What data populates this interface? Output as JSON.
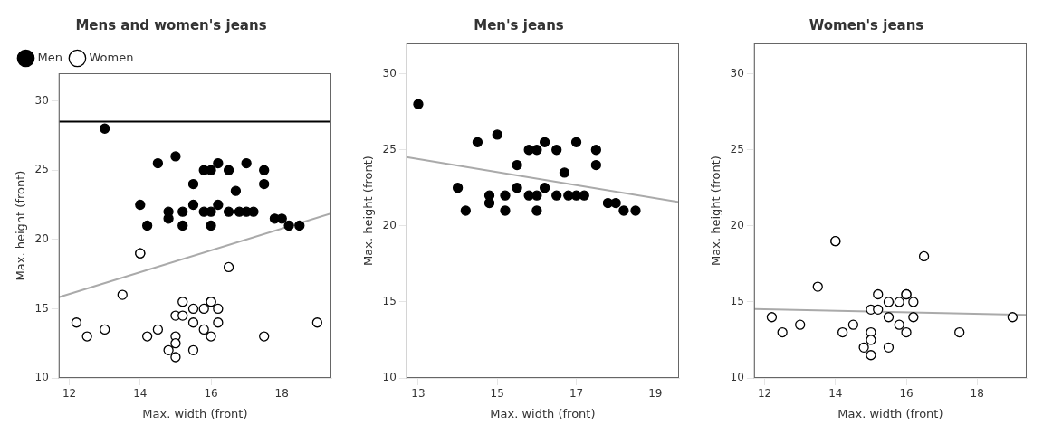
{
  "chart_data": [
    {
      "type": "scatter",
      "title": "Mens and women's jeans",
      "xlabel": "Max. width (front)",
      "ylabel": "Max. height (front)",
      "xlim": [
        11.7,
        19.4
      ],
      "xticks": [
        12,
        14,
        16,
        18
      ],
      "ylim": [
        10,
        32
      ],
      "yticks": [
        10,
        15,
        20,
        25,
        30
      ],
      "grid": false,
      "legend": "upper left",
      "series": [
        {
          "type": "line",
          "color": "#aaaaaa",
          "line_style": "solid",
          "x": [
            11.7,
            19.4
          ],
          "values": [
            15.8233,
            21.8798
          ]
        },
        {
          "name": "Men",
          "type": "scatter",
          "color": "#000000",
          "marker": "circle",
          "x": [
            13.0,
            14.0,
            14.2,
            14.5,
            14.8,
            14.8,
            15.0,
            15.2,
            15.2,
            15.5,
            15.5,
            15.8,
            15.8,
            16.0,
            16.0,
            16.0,
            16.2,
            16.2,
            16.5,
            16.5,
            16.7,
            16.8,
            17.0,
            17.0,
            17.2,
            17.5,
            17.5,
            17.8,
            18.0,
            18.2,
            18.5
          ],
          "values": [
            28.0,
            22.5,
            21.0,
            25.5,
            22.0,
            21.5,
            26.0,
            22.0,
            21.0,
            24.0,
            22.5,
            25.0,
            22.0,
            25.0,
            22.0,
            21.0,
            25.5,
            22.5,
            25.0,
            22.0,
            23.5,
            22.0,
            22.0,
            25.5,
            22.0,
            25.0,
            24.0,
            21.5,
            21.5,
            21.0,
            21.0
          ]
        },
        {
          "name": "Women",
          "type": "scatter",
          "color": "#000000",
          "marker": "open circle",
          "x": [
            12.2,
            12.5,
            13.0,
            13.5,
            14.0,
            14.0,
            14.2,
            14.5,
            14.8,
            15.0,
            15.0,
            15.0,
            15.0,
            15.2,
            15.2,
            15.5,
            15.5,
            15.5,
            15.8,
            15.8,
            16.0,
            16.0,
            16.0,
            16.2,
            16.2,
            16.5,
            17.5,
            19.0
          ],
          "values": [
            14.0,
            13.0,
            13.5,
            16.0,
            19.0,
            19.0,
            13.0,
            13.5,
            12.0,
            14.5,
            13.0,
            12.5,
            11.5,
            15.5,
            14.5,
            15.0,
            14.0,
            12.0,
            15.0,
            13.5,
            15.5,
            15.5,
            13.0,
            15.0,
            14.0,
            18.0,
            13.0,
            14.0
          ]
        },
        {
          "type": "line",
          "color": "#000000",
          "line_style": "solid",
          "x": [
            11.7,
            19.4
          ],
          "values": [
            28.5,
            28.5
          ]
        }
      ]
    },
    {
      "type": "scatter",
      "title": "Men's jeans",
      "xlabel": "Max. width (front)",
      "ylabel": "Max. height (front)",
      "xlim": [
        12.7,
        19.6
      ],
      "xticks": [
        13,
        15,
        17,
        19
      ],
      "ylim": [
        10,
        32
      ],
      "yticks": [
        10,
        15,
        20,
        25,
        30
      ],
      "grid": false,
      "series": [
        {
          "type": "line",
          "color": "#aaaaaa",
          "line_style": "solid",
          "x": [
            12.7,
            19.6
          ],
          "values": [
            24.5174,
            21.5633
          ]
        },
        {
          "type": "scatter",
          "color": "#000000",
          "marker": "circle",
          "x": [
            13.0,
            14.0,
            14.2,
            14.5,
            14.8,
            14.8,
            15.0,
            15.2,
            15.2,
            15.5,
            15.5,
            15.8,
            15.8,
            16.0,
            16.0,
            16.0,
            16.2,
            16.2,
            16.5,
            16.5,
            16.7,
            16.8,
            17.0,
            17.0,
            17.2,
            17.5,
            17.5,
            17.8,
            18.0,
            18.2,
            18.5
          ],
          "values": [
            28.0,
            22.5,
            21.0,
            25.5,
            22.0,
            21.5,
            26.0,
            22.0,
            21.0,
            24.0,
            22.5,
            25.0,
            22.0,
            25.0,
            22.0,
            21.0,
            25.5,
            22.5,
            25.0,
            22.0,
            23.5,
            22.0,
            22.0,
            25.5,
            22.0,
            25.0,
            24.0,
            21.5,
            21.5,
            21.0,
            21.0
          ]
        }
      ]
    },
    {
      "type": "scatter",
      "title": "Women's jeans",
      "xlabel": "Max. width (front)",
      "ylabel": "Max. height (front)",
      "xlim": [
        11.7,
        19.4
      ],
      "xticks": [
        12,
        14,
        16,
        18
      ],
      "ylim": [
        10,
        32
      ],
      "yticks": [
        10,
        15,
        20,
        25,
        30
      ],
      "grid": false,
      "series": [
        {
          "type": "line",
          "color": "#aaaaaa",
          "line_style": "solid",
          "x": [
            11.7,
            19.4
          ],
          "values": [
            14.5267,
            14.1498
          ]
        },
        {
          "type": "scatter",
          "color": "#000000",
          "marker": "open circle",
          "x": [
            12.2,
            12.5,
            13.0,
            13.5,
            14.0,
            14.0,
            14.2,
            14.5,
            14.8,
            15.0,
            15.0,
            15.0,
            15.0,
            15.2,
            15.2,
            15.5,
            15.5,
            15.5,
            15.8,
            15.8,
            16.0,
            16.0,
            16.0,
            16.2,
            16.2,
            16.5,
            17.5,
            19.0
          ],
          "values": [
            14.0,
            13.0,
            13.5,
            16.0,
            19.0,
            19.0,
            13.0,
            13.5,
            12.0,
            14.5,
            13.0,
            12.5,
            11.5,
            15.5,
            14.5,
            15.0,
            14.0,
            12.0,
            15.0,
            13.5,
            15.5,
            15.5,
            13.0,
            15.0,
            14.0,
            18.0,
            13.0,
            14.0
          ]
        }
      ]
    }
  ]
}
